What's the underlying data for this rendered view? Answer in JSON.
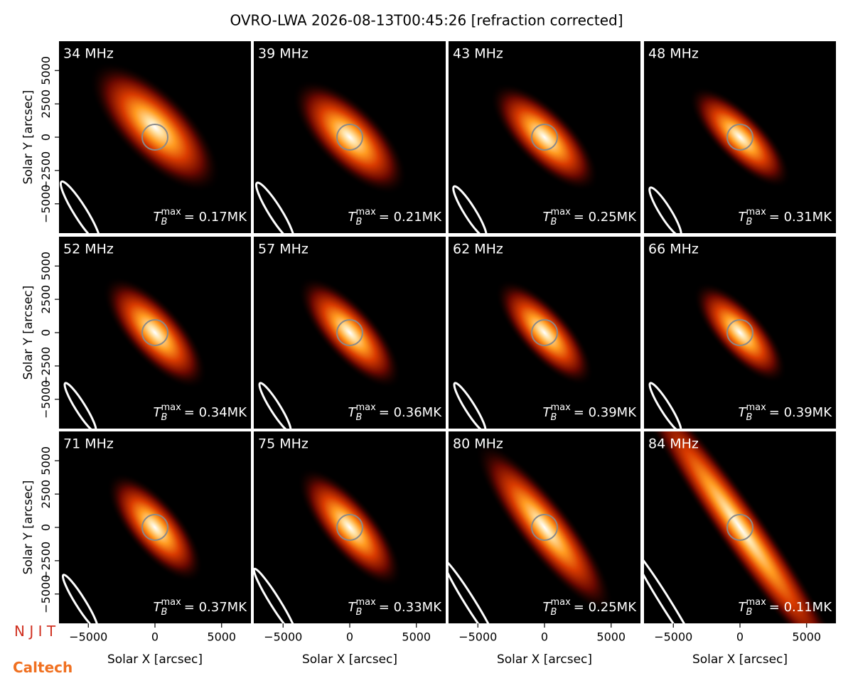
{
  "chart_data": {
    "type": "image_grid",
    "title": "OVRO-LWA 2026-08-13T00:45:26 [refraction corrected]",
    "xlabel": "Solar X [arcsec]",
    "ylabel": "Solar Y [arcsec]",
    "xlim": [
      -7200,
      7200
    ],
    "ylim": [
      -7200,
      7200
    ],
    "xticks": [
      {
        "value": -5000,
        "label": "−5000"
      },
      0,
      5000
    ],
    "yticks": [
      {
        "value": -5000,
        "label": "−5000"
      },
      {
        "value": -2500,
        "label": "−2500"
      },
      0,
      2500,
      5000
    ],
    "tb_symbol": "T",
    "tb_sub": "B",
    "tb_sup": "max",
    "categories": [
      "34 MHz",
      "39 MHz",
      "43 MHz",
      "48 MHz",
      "52 MHz",
      "57 MHz",
      "62 MHz",
      "66 MHz",
      "71 MHz",
      "75 MHz",
      "80 MHz",
      "84 MHz"
    ],
    "values": [
      0.17,
      0.21,
      0.25,
      0.31,
      0.34,
      0.36,
      0.39,
      0.39,
      0.37,
      0.33,
      0.25,
      0.11
    ],
    "value_labels": [
      "= 0.17MK",
      "= 0.21MK",
      "= 0.25MK",
      "= 0.31MK",
      "= 0.34MK",
      "= 0.36MK",
      "= 0.39MK",
      "= 0.39MK",
      "= 0.37MK",
      "= 0.33MK",
      "= 0.25MK",
      "= 0.11MK"
    ]
  },
  "logos": {
    "njit": "N J I T",
    "caltech": "Caltech"
  }
}
